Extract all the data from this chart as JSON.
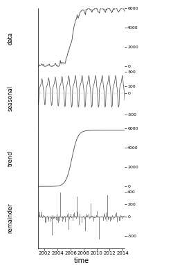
{
  "title": "",
  "xlabel": "time",
  "panel_labels": [
    "data",
    "seasonal",
    "trend",
    "remainder"
  ],
  "year_start": 2001.0,
  "year_end": 2014.3,
  "x_ticks": [
    2002,
    2004,
    2006,
    2008,
    2010,
    2012,
    2014
  ],
  "data_ylim": [
    -200,
    6000
  ],
  "data_yticks": [
    0,
    2000,
    4000,
    6000
  ],
  "seasonal_ylim": [
    -500,
    350
  ],
  "seasonal_yticks": [
    -300,
    0,
    100,
    300
  ],
  "trend_ylim": [
    -200,
    6000
  ],
  "trend_yticks": [
    0,
    2000,
    4000,
    6000
  ],
  "remainder_ylim": [
    -500,
    450
  ],
  "remainder_yticks": [
    -300,
    0,
    200,
    400
  ],
  "line_color": "#444444",
  "bg_color": "#ffffff",
  "n_points": 156
}
